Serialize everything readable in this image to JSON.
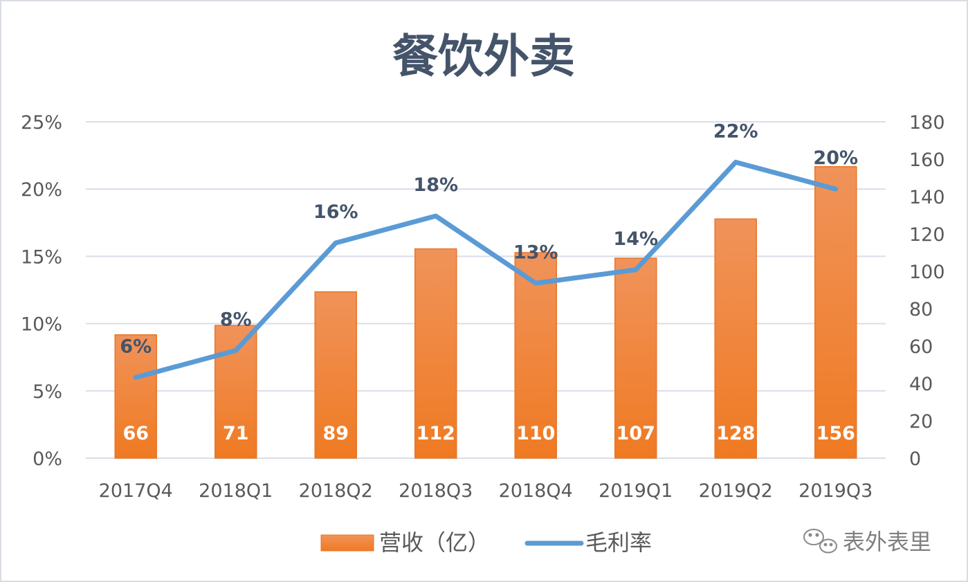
{
  "chart_data": {
    "type": "bar",
    "title": "餐饮外卖",
    "categories": [
      "2017Q4",
      "2018Q1",
      "2018Q2",
      "2018Q3",
      "2018Q4",
      "2019Q1",
      "2019Q2",
      "2019Q3"
    ],
    "series": [
      {
        "name": "营收（亿）",
        "type": "bar",
        "axis": "right",
        "values": [
          66,
          71,
          89,
          112,
          110,
          107,
          128,
          156
        ],
        "labels": [
          "66",
          "71",
          "89",
          "112",
          "110",
          "107",
          "128",
          "156"
        ]
      },
      {
        "name": "毛利率",
        "type": "line",
        "axis": "left",
        "values": [
          0.06,
          0.08,
          0.16,
          0.18,
          0.13,
          0.14,
          0.22,
          0.2
        ],
        "labels": [
          "6%",
          "8%",
          "16%",
          "18%",
          "13%",
          "14%",
          "22%",
          "20%"
        ]
      }
    ],
    "left_axis": {
      "min": 0,
      "max": 0.25,
      "ticks": [
        0,
        0.05,
        0.1,
        0.15,
        0.2,
        0.25
      ],
      "tick_labels": [
        "0%",
        "5%",
        "10%",
        "15%",
        "20%",
        "25%"
      ]
    },
    "right_axis": {
      "min": 0,
      "max": 180,
      "ticks": [
        0,
        20,
        40,
        60,
        80,
        100,
        120,
        140,
        160,
        180
      ],
      "tick_labels": [
        "0",
        "20",
        "40",
        "60",
        "80",
        "100",
        "120",
        "140",
        "160",
        "180"
      ]
    },
    "grid": true,
    "legend_position": "bottom"
  },
  "colors": {
    "bar_top": "#f0935a",
    "bar_bottom": "#ef7a22",
    "bar_stroke": "#e8752a",
    "line": "#5b9bd5",
    "grid": "#d9dee7",
    "axis_text": "#595959",
    "title": "#44546a"
  },
  "watermark": {
    "text": "表外表里",
    "icon": "wechat-icon"
  }
}
